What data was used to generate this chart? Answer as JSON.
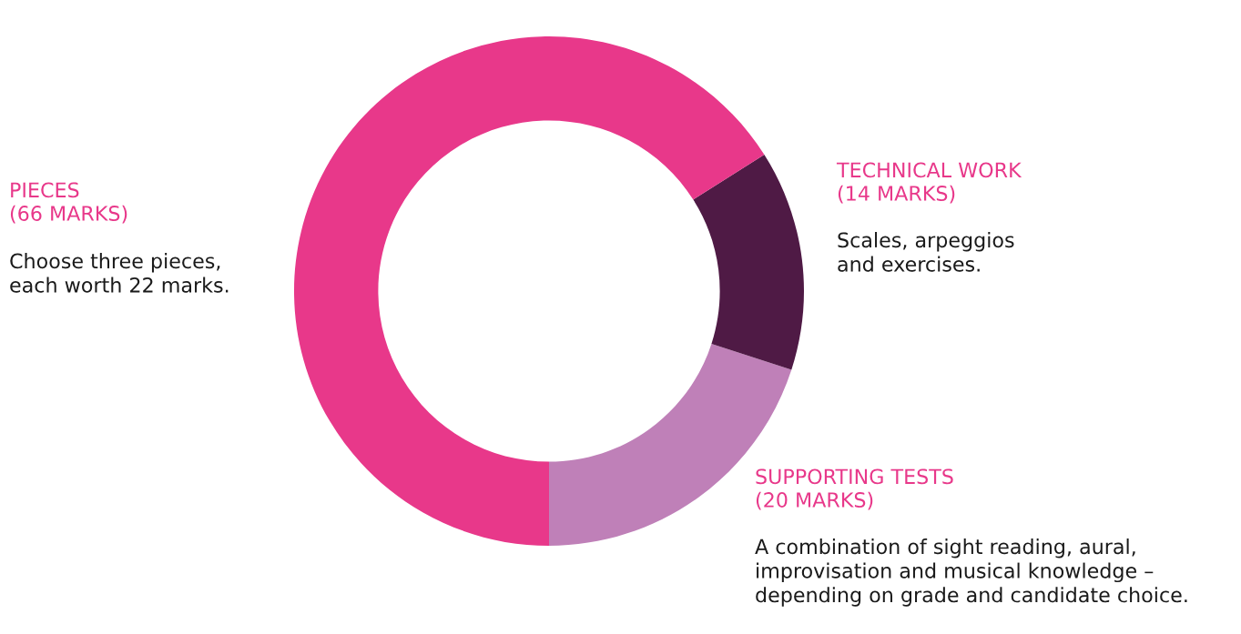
{
  "chart_data": {
    "type": "donut",
    "categories": [
      "SUPPORTING TESTS",
      "TECHNICAL WORK",
      "PIECES"
    ],
    "values": [
      20,
      14,
      66
    ],
    "colors": [
      "#bf80b8",
      "#4f1a45",
      "#e8388a"
    ],
    "value_labels": [
      "(20 MARKS)",
      "(14 MARKS)",
      "(66 MARKS)"
    ],
    "annotations": [
      "A combination of sight reading, aural,\nimprovisation and musical knowledge –\ndepending on grade and candidate choice.",
      "Scales, arpeggios\nand exercises.",
      "Choose three pieces,\neach worth 22 marks."
    ],
    "legend": false
  }
}
